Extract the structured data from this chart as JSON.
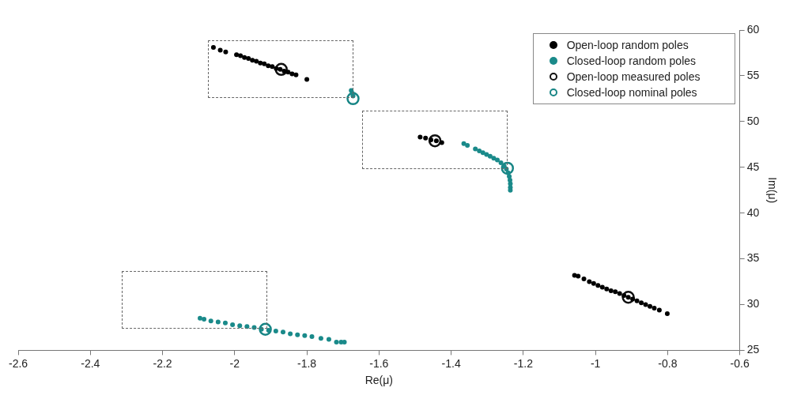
{
  "chart_data": {
    "type": "scatter",
    "xlabel": "Re(μ)",
    "ylabel": "Im(μ)",
    "xlim": [
      -2.6,
      -0.6
    ],
    "ylim": [
      25,
      60
    ],
    "xticks": [
      -2.6,
      -2.4,
      -2.2,
      -2,
      -1.8,
      -1.6,
      -1.4,
      -1.2,
      -1,
      -0.8,
      -0.6
    ],
    "yticks": [
      25,
      30,
      35,
      40,
      45,
      50,
      55,
      60
    ],
    "grid": false,
    "legend": "top right",
    "marker": "circle",
    "series": [
      {
        "name": "Open-loop random poles",
        "color": "#000000",
        "x": [
          -2.059,
          -2.04,
          -2.025,
          -1.995,
          -1.984,
          -1.973,
          -1.962,
          -1.951,
          -1.94,
          -1.929,
          -1.918,
          -1.907,
          -1.896,
          -1.885,
          -1.874,
          -1.863,
          -1.852,
          -1.841,
          -1.83,
          -1.8,
          -1.486,
          -1.471,
          -1.456,
          -1.441,
          -1.426,
          -1.058,
          -1.048,
          -1.032,
          -1.017,
          -1.005,
          -0.993,
          -0.981,
          -0.969,
          -0.957,
          -0.945,
          -0.933,
          -0.921,
          -0.909,
          -0.897,
          -0.885,
          -0.873,
          -0.861,
          -0.849,
          -0.837,
          -0.823,
          -0.801
        ],
        "values": [
          58.1,
          57.8,
          57.6,
          57.3,
          57.2,
          57,
          56.9,
          56.7,
          56.6,
          56.4,
          56.3,
          56.1,
          56,
          55.8,
          55.7,
          55.5,
          55.4,
          55.2,
          55.1,
          54.6,
          48.3,
          48.2,
          48,
          47.9,
          47.7,
          33.2,
          33.1,
          32.8,
          32.5,
          32.3,
          32.1,
          31.9,
          31.7,
          31.5,
          31.4,
          31.2,
          31,
          30.8,
          30.6,
          30.4,
          30.2,
          30,
          29.8,
          29.6,
          29.4,
          29
        ]
      },
      {
        "name": "Closed-loop random poles",
        "color": "#1a8a8a",
        "x": [
          -1.677,
          -1.674,
          -1.672,
          -1.365,
          -1.355,
          -1.333,
          -1.322,
          -1.312,
          -1.302,
          -1.292,
          -1.282,
          -1.272,
          -1.262,
          -1.253,
          -1.247,
          -1.242,
          -1.239,
          -1.237,
          -1.236,
          -1.236,
          -1.236,
          -2.096,
          -2.085,
          -2.066,
          -2.046,
          -2.026,
          -2.006,
          -1.986,
          -1.966,
          -1.946,
          -1.926,
          -1.906,
          -1.886,
          -1.866,
          -1.846,
          -1.826,
          -1.806,
          -1.786,
          -1.761,
          -1.739,
          -1.718,
          -1.705,
          -1.696
        ],
        "values": [
          53.4,
          53.1,
          52.8,
          47.6,
          47.4,
          47,
          46.8,
          46.6,
          46.4,
          46.2,
          46,
          45.8,
          45.5,
          45.1,
          44.8,
          44.4,
          44,
          43.6,
          43.2,
          42.8,
          42.5,
          28.5,
          28.4,
          28.2,
          28.1,
          28,
          27.8,
          27.7,
          27.6,
          27.5,
          27.3,
          27.2,
          27.1,
          27,
          26.8,
          26.7,
          26.6,
          26.5,
          26.3,
          26.2,
          25.9,
          25.9,
          25.9
        ]
      },
      {
        "name": "Open-loop measured poles",
        "color": "#111111",
        "x": [
          -1.871,
          -1.445,
          -0.909
        ],
        "values": [
          55.7,
          47.9,
          30.8
        ]
      },
      {
        "name": "Closed-loop nominal poles",
        "color": "#178585",
        "x": [
          -1.672,
          -1.244,
          -1.915
        ],
        "values": [
          52.5,
          44.9,
          27.3
        ]
      }
    ]
  }
}
